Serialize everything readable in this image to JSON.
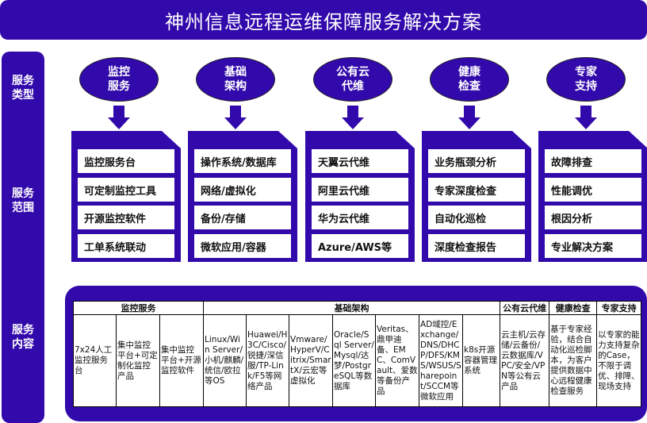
{
  "title": "神州信息远程运维保障服务解决方案",
  "side_labels": [
    "服务\n类型",
    "服务\n范围",
    "服务\n内容"
  ],
  "categories": [
    {
      "name": "监控\n服务",
      "items": [
        "监控服务台",
        "可定制监控工具",
        "开源监控软件",
        "工单系统联动"
      ]
    },
    {
      "name": "基础\n架构",
      "items": [
        "操作系统/数据库",
        "网络/虚拟化",
        "备份/存储",
        "微软应用/容器"
      ]
    },
    {
      "name": "公有云\n代维",
      "items": [
        "天翼云代维",
        "阿里云代维",
        "华为云代维",
        "Azure/AWS等"
      ]
    },
    {
      "name": "健康\n检查",
      "items": [
        "业务瓶颈分析",
        "专家深度检查",
        "自动化巡检",
        "深度检查报告"
      ]
    },
    {
      "name": "专家\n支持",
      "items": [
        "故障排查",
        "性能调优",
        "根因分析",
        "专业解决方案"
      ]
    }
  ],
  "table": {
    "headers": [
      "监控服务",
      "基础架构",
      "公有云代维",
      "健康检查",
      "专家支持"
    ],
    "cells": [
      "7x24人工监控服务台",
      "集中监控平台+可定制化监控产品",
      "集中监控平台+开源监控软件",
      "Linux/Win Server/小机/麒麟/统信/欧拉等OS",
      "Huawei/H3C/Cisco/锐捷/深信服/TP-Link/F5等网络产品",
      "Vmware/HyperV/Citrix/SmartX/云宏等虚拟化",
      "Oracle/Sql Server/Mysql/达梦/PostgreSQL等数据库",
      "Veritas、鼎甲迪备、EMC、ComVault、爱数等备份产品",
      "AD域控/Exchange/DNS/DHCP/DFS/KMS/WSUS/Sharepoint/SCCM等微软应用",
      "k8s开源容器管理系统",
      "云主机/云存储/云备份/云数据库/VPC/安全/VPN等公有云产品",
      "基于专家经验，结合自动化巡检脚本，为客户提供数据中心远程健康检查服务",
      "以专家的能力支持复杂的Case，不限于调优、排障、现场支持"
    ]
  },
  "colors": {
    "primary": "#3209ab",
    "text_on_primary": "#ffffff"
  }
}
